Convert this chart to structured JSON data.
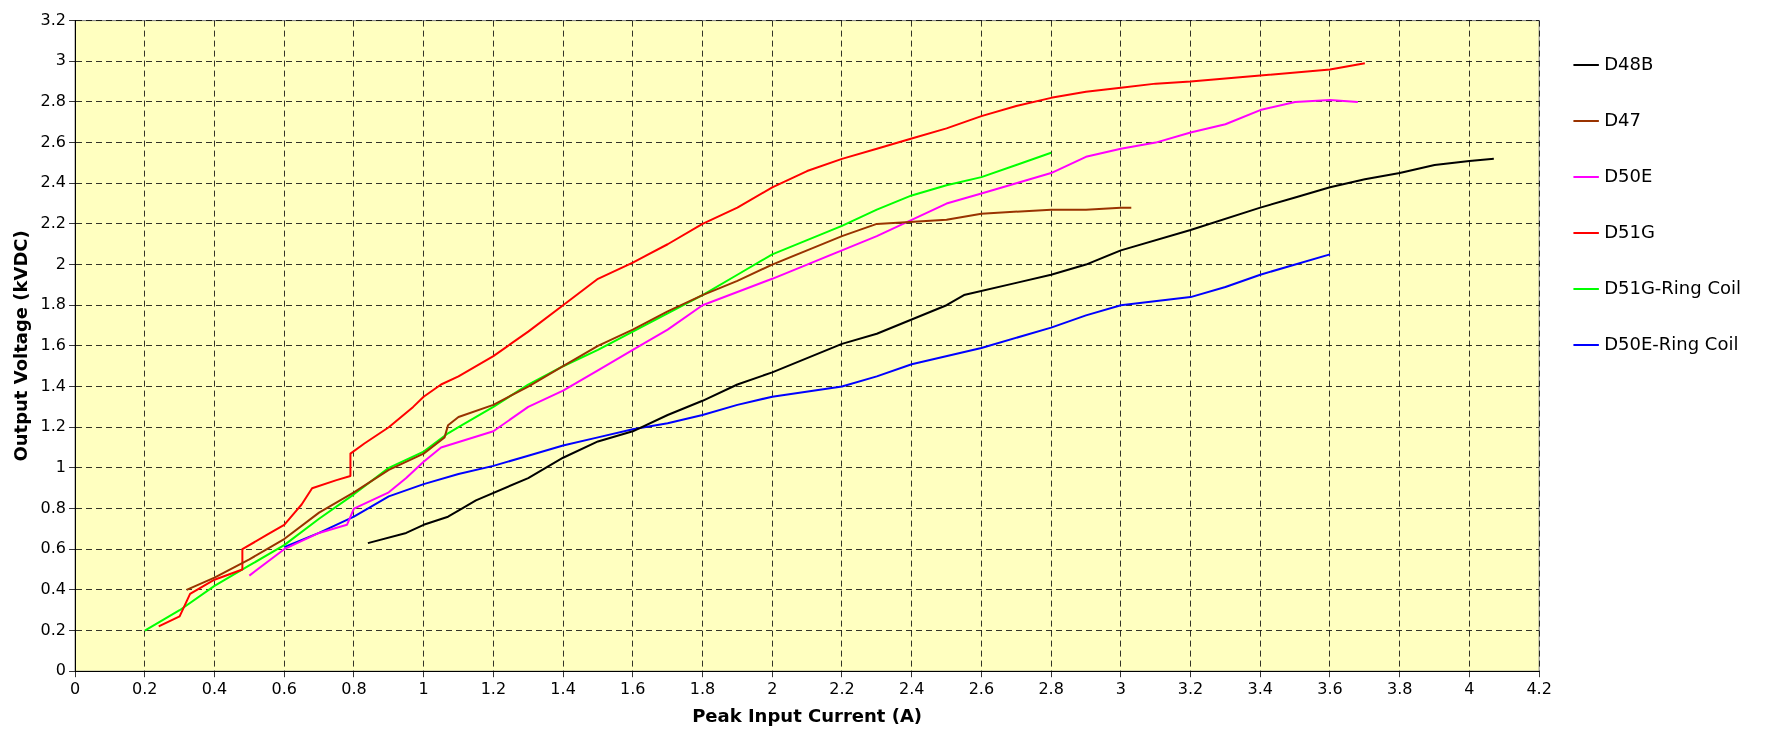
{
  "chart_data": {
    "type": "line",
    "xlabel": "Peak Input Current (A)",
    "ylabel": "Output Voltage (kVDC)",
    "xlim": [
      0,
      4.2
    ],
    "ylim": [
      0,
      3.2
    ],
    "xticks": [
      0,
      0.2,
      0.4,
      0.6,
      0.8,
      1,
      1.2,
      1.4,
      1.6,
      1.8,
      2,
      2.2,
      2.4,
      2.6,
      2.8,
      3,
      3.2,
      3.4,
      3.6,
      3.8,
      4,
      4.2
    ],
    "yticks": [
      0,
      0.2,
      0.4,
      0.6,
      0.8,
      1,
      1.2,
      1.4,
      1.6,
      1.8,
      2,
      2.2,
      2.4,
      2.6,
      2.8,
      3,
      3.2
    ],
    "grid": true,
    "legend": "right",
    "marker": "none",
    "line_style": "solid",
    "series": [
      {
        "name": "D48B",
        "color": "#000000",
        "x": [
          0.84,
          0.95,
          1.0,
          1.07,
          1.15,
          1.3,
          1.4,
          1.5,
          1.6,
          1.7,
          1.8,
          1.9,
          2.0,
          2.2,
          2.3,
          2.4,
          2.5,
          2.55,
          2.7,
          2.8,
          2.9,
          3.0,
          3.2,
          3.4,
          3.5,
          3.6,
          3.7,
          3.8,
          3.9,
          4.0,
          4.07
        ],
        "values": [
          0.63,
          0.68,
          0.72,
          0.76,
          0.84,
          0.95,
          1.05,
          1.13,
          1.18,
          1.26,
          1.33,
          1.41,
          1.47,
          1.61,
          1.66,
          1.73,
          1.8,
          1.85,
          1.91,
          1.95,
          2.0,
          2.07,
          2.17,
          2.28,
          2.33,
          2.38,
          2.42,
          2.45,
          2.49,
          2.51,
          2.52
        ]
      },
      {
        "name": "D47",
        "color": "#993300",
        "x": [
          0.32,
          0.4,
          0.5,
          0.6,
          0.7,
          0.8,
          0.9,
          1.0,
          1.06,
          1.07,
          1.1,
          1.2,
          1.3,
          1.4,
          1.5,
          1.6,
          1.7,
          1.8,
          1.9,
          2.0,
          2.1,
          2.2,
          2.3,
          2.5,
          2.6,
          2.8,
          2.9,
          3.0,
          3.03
        ],
        "values": [
          0.4,
          0.46,
          0.55,
          0.65,
          0.78,
          0.88,
          0.99,
          1.07,
          1.15,
          1.21,
          1.25,
          1.31,
          1.4,
          1.5,
          1.6,
          1.68,
          1.77,
          1.85,
          1.92,
          2.0,
          2.07,
          2.14,
          2.2,
          2.22,
          2.25,
          2.27,
          2.27,
          2.28,
          2.28
        ]
      },
      {
        "name": "D50E",
        "color": "#ff00ff",
        "x": [
          0.5,
          0.6,
          0.7,
          0.78,
          0.8,
          0.9,
          0.95,
          1.0,
          1.05,
          1.2,
          1.3,
          1.4,
          1.5,
          1.6,
          1.7,
          1.8,
          2.0,
          2.1,
          2.2,
          2.3,
          2.4,
          2.5,
          2.6,
          2.7,
          2.8,
          2.9,
          3.0,
          3.1,
          3.2,
          3.3,
          3.4,
          3.5,
          3.6,
          3.68
        ],
        "values": [
          0.47,
          0.6,
          0.68,
          0.72,
          0.8,
          0.88,
          0.95,
          1.03,
          1.1,
          1.18,
          1.3,
          1.38,
          1.48,
          1.58,
          1.68,
          1.8,
          1.93,
          2.0,
          2.07,
          2.14,
          2.22,
          2.3,
          2.35,
          2.4,
          2.45,
          2.53,
          2.57,
          2.6,
          2.65,
          2.69,
          2.76,
          2.8,
          2.81,
          2.8
        ]
      },
      {
        "name": "D51G",
        "color": "#ff0000",
        "x": [
          0.24,
          0.3,
          0.33,
          0.4,
          0.48,
          0.48,
          0.55,
          0.6,
          0.65,
          0.68,
          0.75,
          0.79,
          0.79,
          0.83,
          0.9,
          0.97,
          1.0,
          1.05,
          1.1,
          1.2,
          1.3,
          1.4,
          1.5,
          1.6,
          1.7,
          1.8,
          1.9,
          2.0,
          2.1,
          2.2,
          2.3,
          2.4,
          2.5,
          2.6,
          2.7,
          2.8,
          2.9,
          3.0,
          3.1,
          3.2,
          3.4,
          3.6,
          3.7
        ],
        "values": [
          0.22,
          0.27,
          0.38,
          0.45,
          0.5,
          0.6,
          0.67,
          0.72,
          0.82,
          0.9,
          0.94,
          0.96,
          1.07,
          1.12,
          1.2,
          1.3,
          1.35,
          1.41,
          1.45,
          1.55,
          1.67,
          1.8,
          1.93,
          2.01,
          2.1,
          2.2,
          2.28,
          2.38,
          2.46,
          2.52,
          2.57,
          2.62,
          2.67,
          2.73,
          2.78,
          2.82,
          2.85,
          2.87,
          2.89,
          2.9,
          2.93,
          2.96,
          2.99
        ]
      },
      {
        "name": "D51G-Ring Coil",
        "color": "#00ff00",
        "x": [
          0.2,
          0.3,
          0.4,
          0.5,
          0.6,
          0.7,
          0.8,
          0.9,
          1.0,
          1.07,
          1.1,
          1.2,
          1.3,
          1.4,
          1.5,
          1.6,
          1.7,
          1.8,
          1.9,
          2.0,
          2.1,
          2.2,
          2.3,
          2.4,
          2.5,
          2.6,
          2.7,
          2.8
        ],
        "values": [
          0.2,
          0.3,
          0.42,
          0.52,
          0.62,
          0.75,
          0.87,
          1.0,
          1.08,
          1.17,
          1.2,
          1.3,
          1.41,
          1.5,
          1.58,
          1.67,
          1.76,
          1.85,
          1.95,
          2.05,
          2.12,
          2.19,
          2.27,
          2.34,
          2.39,
          2.43,
          2.49,
          2.55
        ]
      },
      {
        "name": "D50E-Ring Coil",
        "color": "#0000ff",
        "x": [
          0.6,
          0.7,
          0.8,
          0.9,
          1.0,
          1.1,
          1.2,
          1.3,
          1.4,
          1.5,
          1.6,
          1.7,
          1.8,
          1.9,
          2.0,
          2.2,
          2.3,
          2.4,
          2.6,
          2.8,
          2.9,
          3.0,
          3.2,
          3.3,
          3.4,
          3.6
        ],
        "values": [
          0.61,
          0.68,
          0.76,
          0.86,
          0.92,
          0.97,
          1.01,
          1.06,
          1.11,
          1.15,
          1.19,
          1.22,
          1.26,
          1.31,
          1.35,
          1.4,
          1.45,
          1.51,
          1.59,
          1.69,
          1.75,
          1.8,
          1.84,
          1.89,
          1.95,
          2.05
        ]
      }
    ]
  }
}
